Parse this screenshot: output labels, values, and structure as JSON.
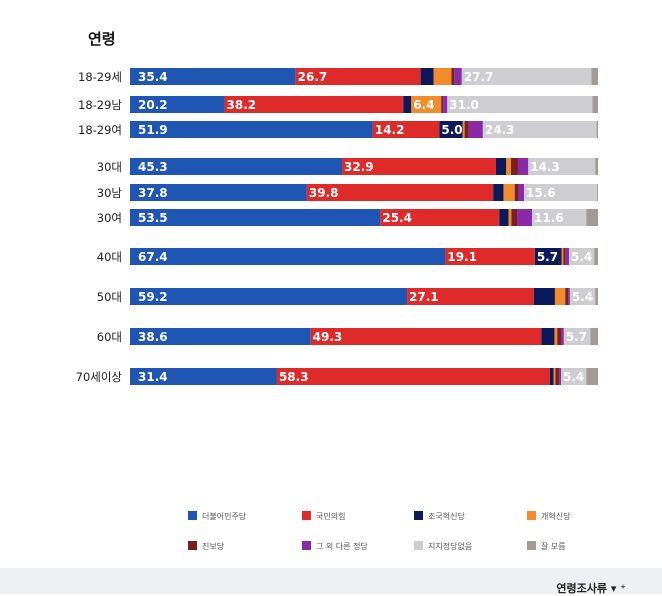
{
  "chart_data": {
    "type": "bar",
    "orientation": "horizontal",
    "stacked": true,
    "title": "연령",
    "xlim": [
      0,
      100
    ],
    "categories": [
      "18-29세",
      "18-29남",
      "18-29여",
      "30대",
      "30남",
      "30여",
      "40대",
      "50대",
      "60대",
      "70세이상"
    ],
    "series": [
      {
        "name": "더불어민주당",
        "color": "#1f56b4",
        "values": [
          35.4,
          20.2,
          51.9,
          45.3,
          37.8,
          53.5,
          67.4,
          59.2,
          38.6,
          31.4
        ]
      },
      {
        "name": "국민의힘",
        "color": "#df2a2a",
        "values": [
          26.7,
          38.2,
          14.2,
          32.9,
          39.8,
          25.4,
          19.1,
          27.1,
          49.3,
          58.3
        ]
      },
      {
        "name": "조국혁신당",
        "color": "#0c1a5c",
        "values": [
          2.8,
          1.7,
          5.0,
          2.2,
          2.2,
          2.0,
          5.7,
          4.5,
          2.8,
          0.8
        ]
      },
      {
        "name": "개혁신당",
        "color": "#f08d2a",
        "values": [
          3.8,
          6.4,
          0.4,
          1.0,
          2.4,
          0.6,
          0.4,
          2.2,
          0.6,
          0.4
        ]
      },
      {
        "name": "진보당",
        "color": "#7a1f1f",
        "values": [
          0.6,
          0.4,
          0.9,
          1.5,
          0.8,
          1.2,
          0.5,
          0.6,
          0.8,
          0.8
        ]
      },
      {
        "name": "그 외 다른 정당",
        "color": "#8a2aa8",
        "values": [
          1.6,
          0.9,
          3.0,
          2.2,
          1.2,
          3.2,
          0.7,
          0.4,
          0.6,
          0.4
        ]
      },
      {
        "name": "지지정당없음",
        "color": "#cdcdd2",
        "values": [
          27.7,
          31.0,
          24.3,
          14.3,
          15.6,
          11.6,
          5.4,
          5.4,
          5.7,
          5.4
        ]
      },
      {
        "name": "잘 모름",
        "color": "#a39a95",
        "values": [
          1.4,
          1.2,
          0.3,
          0.6,
          0.2,
          2.5,
          0.8,
          0.6,
          1.6,
          2.5
        ]
      }
    ],
    "data_labels": [
      [
        {
          "series": 0,
          "text": "35.4"
        },
        {
          "series": 1,
          "text": "26.7"
        },
        {
          "series": 6,
          "text": "27.7"
        }
      ],
      [
        {
          "series": 0,
          "text": "20.2"
        },
        {
          "series": 1,
          "text": "38.2"
        },
        {
          "series": 3,
          "text": "6.4"
        },
        {
          "series": 6,
          "text": "31.0"
        }
      ],
      [
        {
          "series": 0,
          "text": "51.9"
        },
        {
          "series": 1,
          "text": "14.2"
        },
        {
          "series": 2,
          "text": "5.0"
        },
        {
          "series": 6,
          "text": "24.3"
        }
      ],
      [
        {
          "series": 0,
          "text": "45.3"
        },
        {
          "series": 1,
          "text": "32.9"
        },
        {
          "series": 6,
          "text": "14.3"
        }
      ],
      [
        {
          "series": 0,
          "text": "37.8"
        },
        {
          "series": 1,
          "text": "39.8"
        },
        {
          "series": 6,
          "text": "15.6"
        }
      ],
      [
        {
          "series": 0,
          "text": "53.5"
        },
        {
          "series": 1,
          "text": "25.4"
        },
        {
          "series": 6,
          "text": "11.6"
        }
      ],
      [
        {
          "series": 0,
          "text": "67.4"
        },
        {
          "series": 1,
          "text": "19.1"
        },
        {
          "series": 2,
          "text": "5.7"
        },
        {
          "series": 6,
          "text": "5.4"
        }
      ],
      [
        {
          "series": 0,
          "text": "59.2"
        },
        {
          "series": 1,
          "text": "27.1"
        },
        {
          "series": 6,
          "text": "5.4"
        }
      ],
      [
        {
          "series": 0,
          "text": "38.6"
        },
        {
          "series": 1,
          "text": "49.3"
        },
        {
          "series": 6,
          "text": "5.7"
        }
      ],
      [
        {
          "series": 0,
          "text": "31.4"
        },
        {
          "series": 1,
          "text": "58.3"
        },
        {
          "series": 6,
          "text": "5.4"
        }
      ]
    ],
    "legend_position": "bottom"
  },
  "footer": {
    "text": "연령조사류 ▾ ⁺"
  }
}
